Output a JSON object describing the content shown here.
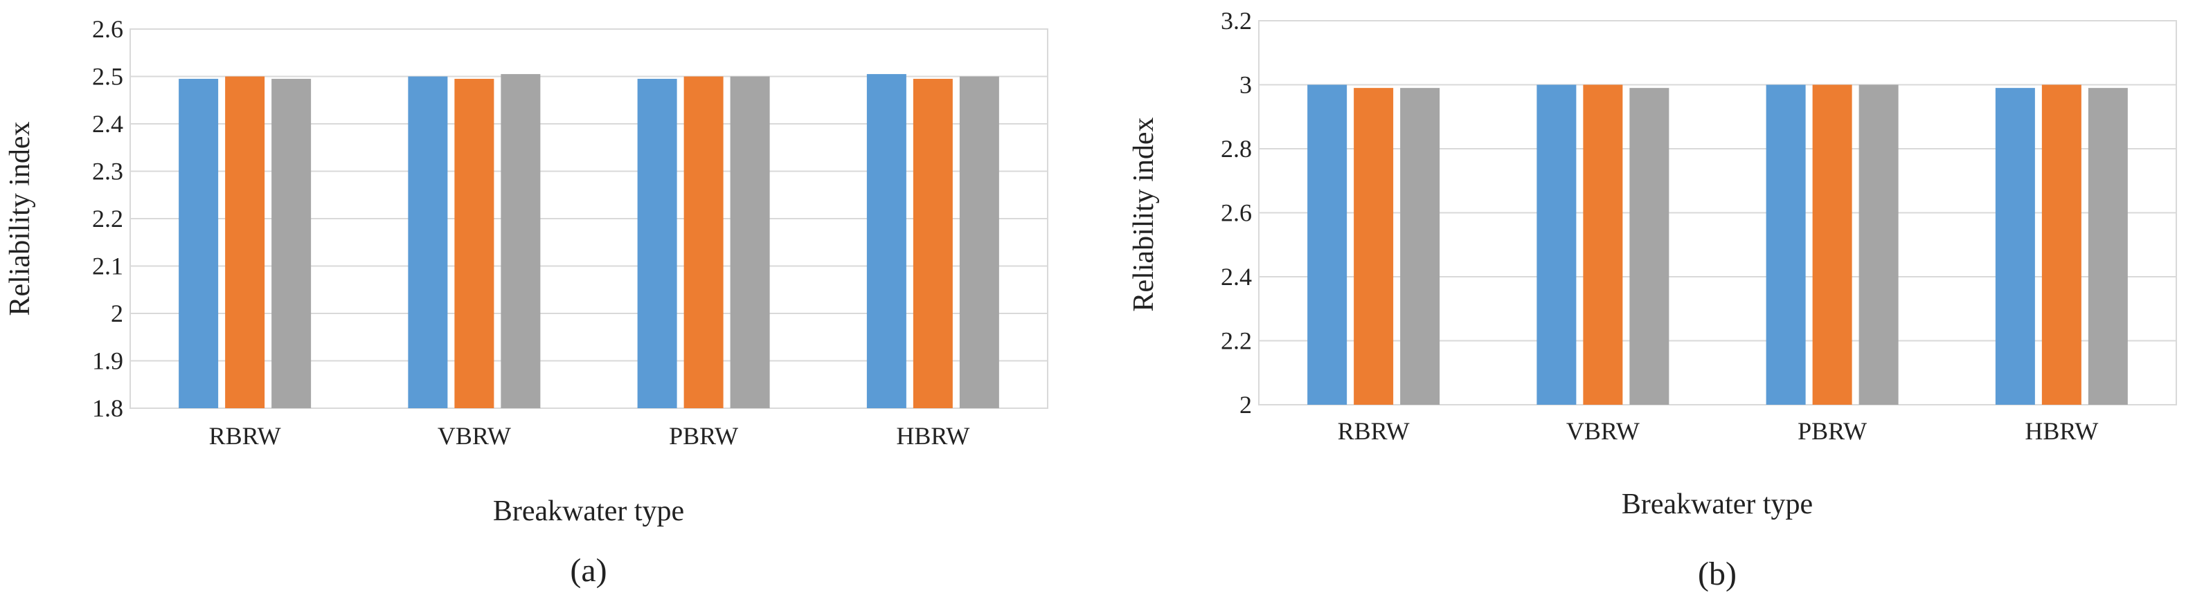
{
  "chart_data": [
    {
      "type": "bar",
      "panel_label": "(a)",
      "xlabel": "Breakwater type",
      "ylabel": "Reliability index",
      "categories": [
        "RBRW",
        "VBRW",
        "PBRW",
        "HBRW"
      ],
      "ylim": [
        1.8,
        2.6
      ],
      "yticks": [
        "1.8",
        "1.9",
        "2",
        "2.1",
        "2.2",
        "2.3",
        "2.4",
        "2.5",
        "2.6"
      ],
      "grid": true,
      "legend": "none",
      "series": [
        {
          "color": "#5b9bd5",
          "values": [
            2.495,
            2.5,
            2.495,
            2.505
          ]
        },
        {
          "color": "#ed7d31",
          "values": [
            2.5,
            2.495,
            2.5,
            2.495
          ]
        },
        {
          "color": "#a5a5a5",
          "values": [
            2.495,
            2.505,
            2.5,
            2.5
          ]
        }
      ]
    },
    {
      "type": "bar",
      "panel_label": "(b)",
      "xlabel": "Breakwater type",
      "ylabel": "Reliability index",
      "categories": [
        "RBRW",
        "VBRW",
        "PBRW",
        "HBRW"
      ],
      "ylim": [
        2.0,
        3.2
      ],
      "yticks": [
        "2",
        "2.2",
        "2.4",
        "2.6",
        "2.8",
        "3",
        "3.2"
      ],
      "grid": true,
      "legend": "none",
      "series": [
        {
          "color": "#5b9bd5",
          "values": [
            3.0,
            3.0,
            3.0,
            2.99
          ]
        },
        {
          "color": "#ed7d31",
          "values": [
            2.99,
            3.0,
            3.0,
            3.0
          ]
        },
        {
          "color": "#a5a5a5",
          "values": [
            2.99,
            2.99,
            3.0,
            2.99
          ]
        }
      ]
    }
  ]
}
